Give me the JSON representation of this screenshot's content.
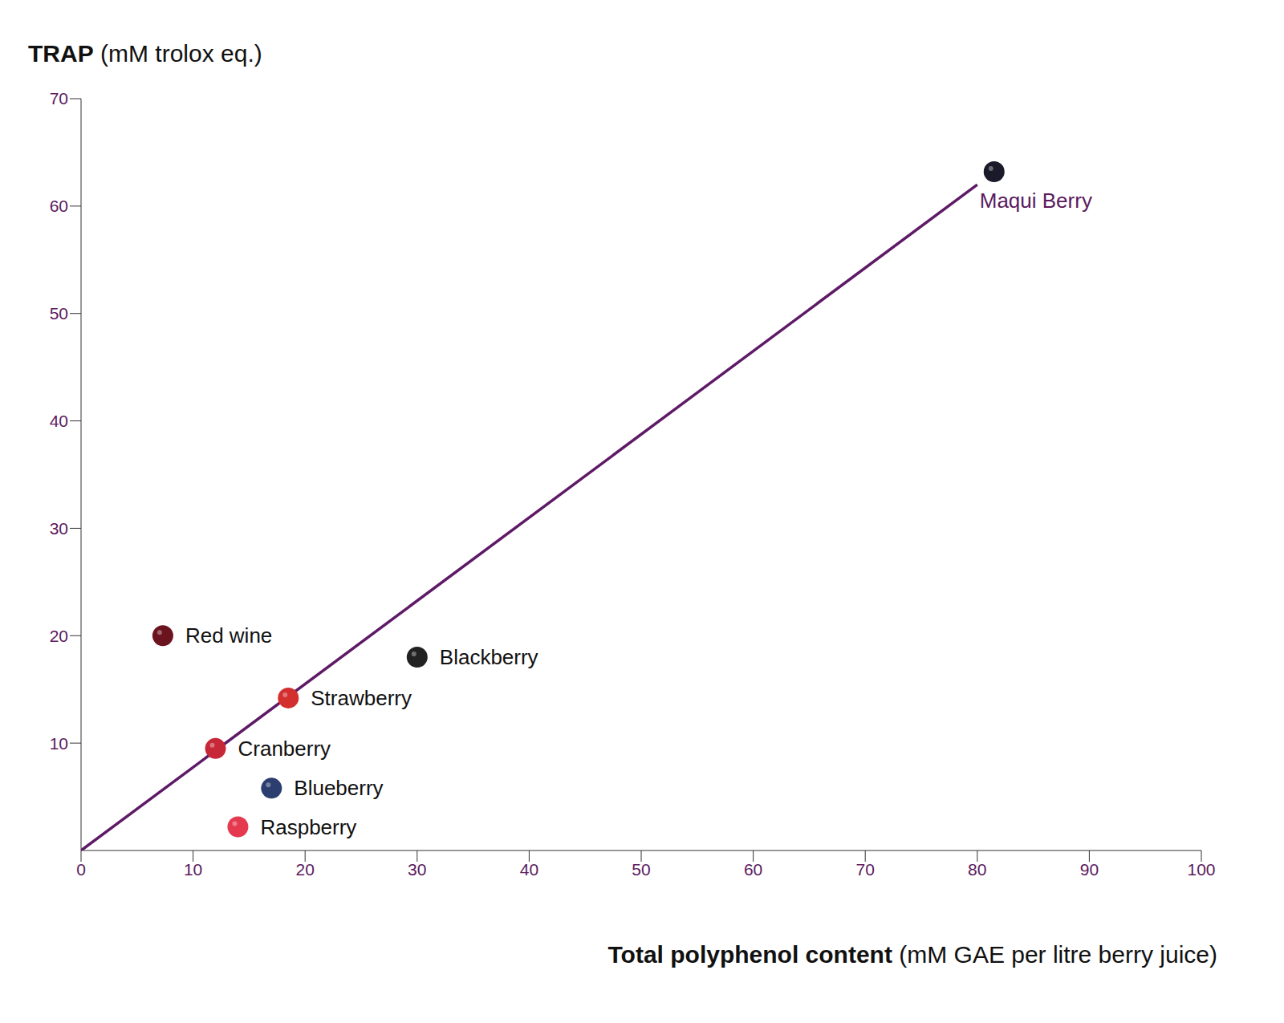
{
  "chart_data": {
    "type": "scatter",
    "x_label": "Total polyphenol content (mM GAE per litre berry juice)",
    "y_label": "TRAP (mM trolox eq.)",
    "labels": [
      "Red wine",
      "Strawberry",
      "Cranberry",
      "Blueberry",
      "Raspberry",
      "Blackberry",
      "Maqui Berry"
    ],
    "x": [
      7.3,
      18.5,
      12,
      17,
      14,
      30,
      81.5
    ],
    "values": [
      20,
      14.2,
      9.5,
      5.8,
      2.2,
      18,
      63.2
    ],
    "colors": [
      "#6b1420",
      "#d32f2f",
      "#c62838",
      "#2c3e70",
      "#e53950",
      "#222222",
      "#1a1a2a"
    ],
    "trend_line": {
      "x": [
        0,
        80
      ],
      "values": [
        0,
        62
      ],
      "color": "#5e1a66"
    },
    "xlim": [
      0,
      100
    ],
    "xticks": [
      0,
      10,
      20,
      30,
      40,
      50,
      60,
      70,
      80,
      90,
      100
    ],
    "ylim": [
      0,
      70
    ],
    "yticks": [
      10,
      20,
      30,
      40,
      50,
      60,
      70
    ]
  }
}
